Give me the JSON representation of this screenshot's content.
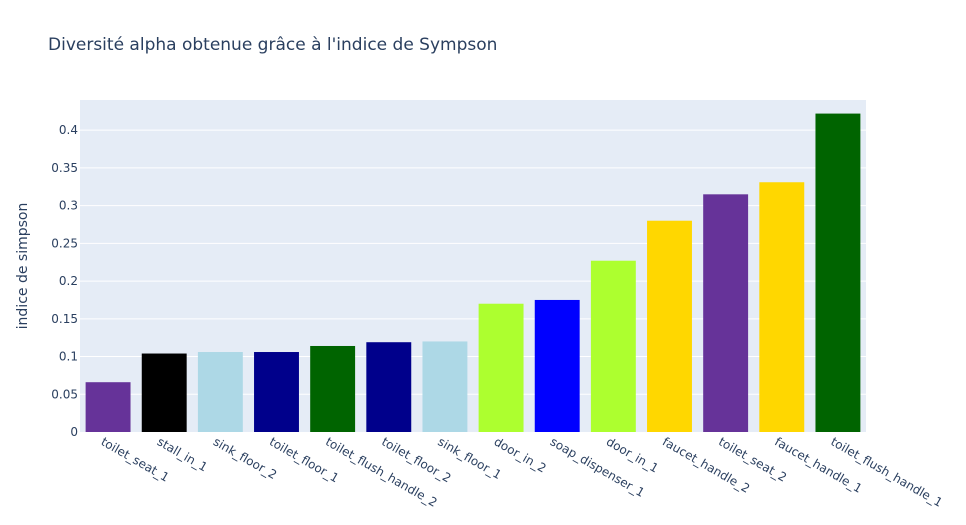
{
  "chart_data": {
    "type": "bar",
    "title": "Diversité alpha obtenue grâce à l'indice de Sympson",
    "xlabel": "",
    "ylabel": "indice de simpson",
    "ylim": [
      0,
      0.44
    ],
    "yticks": [
      0,
      0.05,
      0.1,
      0.15,
      0.2,
      0.25,
      0.3,
      0.35,
      0.4
    ],
    "ytick_labels": [
      "0",
      "0.05",
      "0.1",
      "0.15",
      "0.2",
      "0.25",
      "0.3",
      "0.35",
      "0.4"
    ],
    "grid": true,
    "categories": [
      "toilet_seat_1",
      "stall_in_1",
      "sink_floor_2",
      "toilet_floor_1",
      "toilet_flush_handle_2",
      "toilet_floor_2",
      "sink_floor_1",
      "door_in_2",
      "soap_dispenser_1",
      "door_in_1",
      "faucet_handle_2",
      "toilet_seat_2",
      "faucet_handle_1",
      "toilet_flush_handle_1"
    ],
    "values": [
      0.066,
      0.104,
      0.106,
      0.106,
      0.114,
      0.119,
      0.12,
      0.17,
      0.175,
      0.227,
      0.28,
      0.315,
      0.331,
      0.422
    ],
    "colors": [
      "#663399",
      "#000000",
      "#add8e6",
      "#00008b",
      "#006400",
      "#00008b",
      "#add8e6",
      "#adff2f",
      "#0000ff",
      "#adff2f",
      "#ffd700",
      "#663399",
      "#ffd700",
      "#006400"
    ],
    "plot_background": "#e5ecf6",
    "gridline_color": "#ffffff"
  }
}
